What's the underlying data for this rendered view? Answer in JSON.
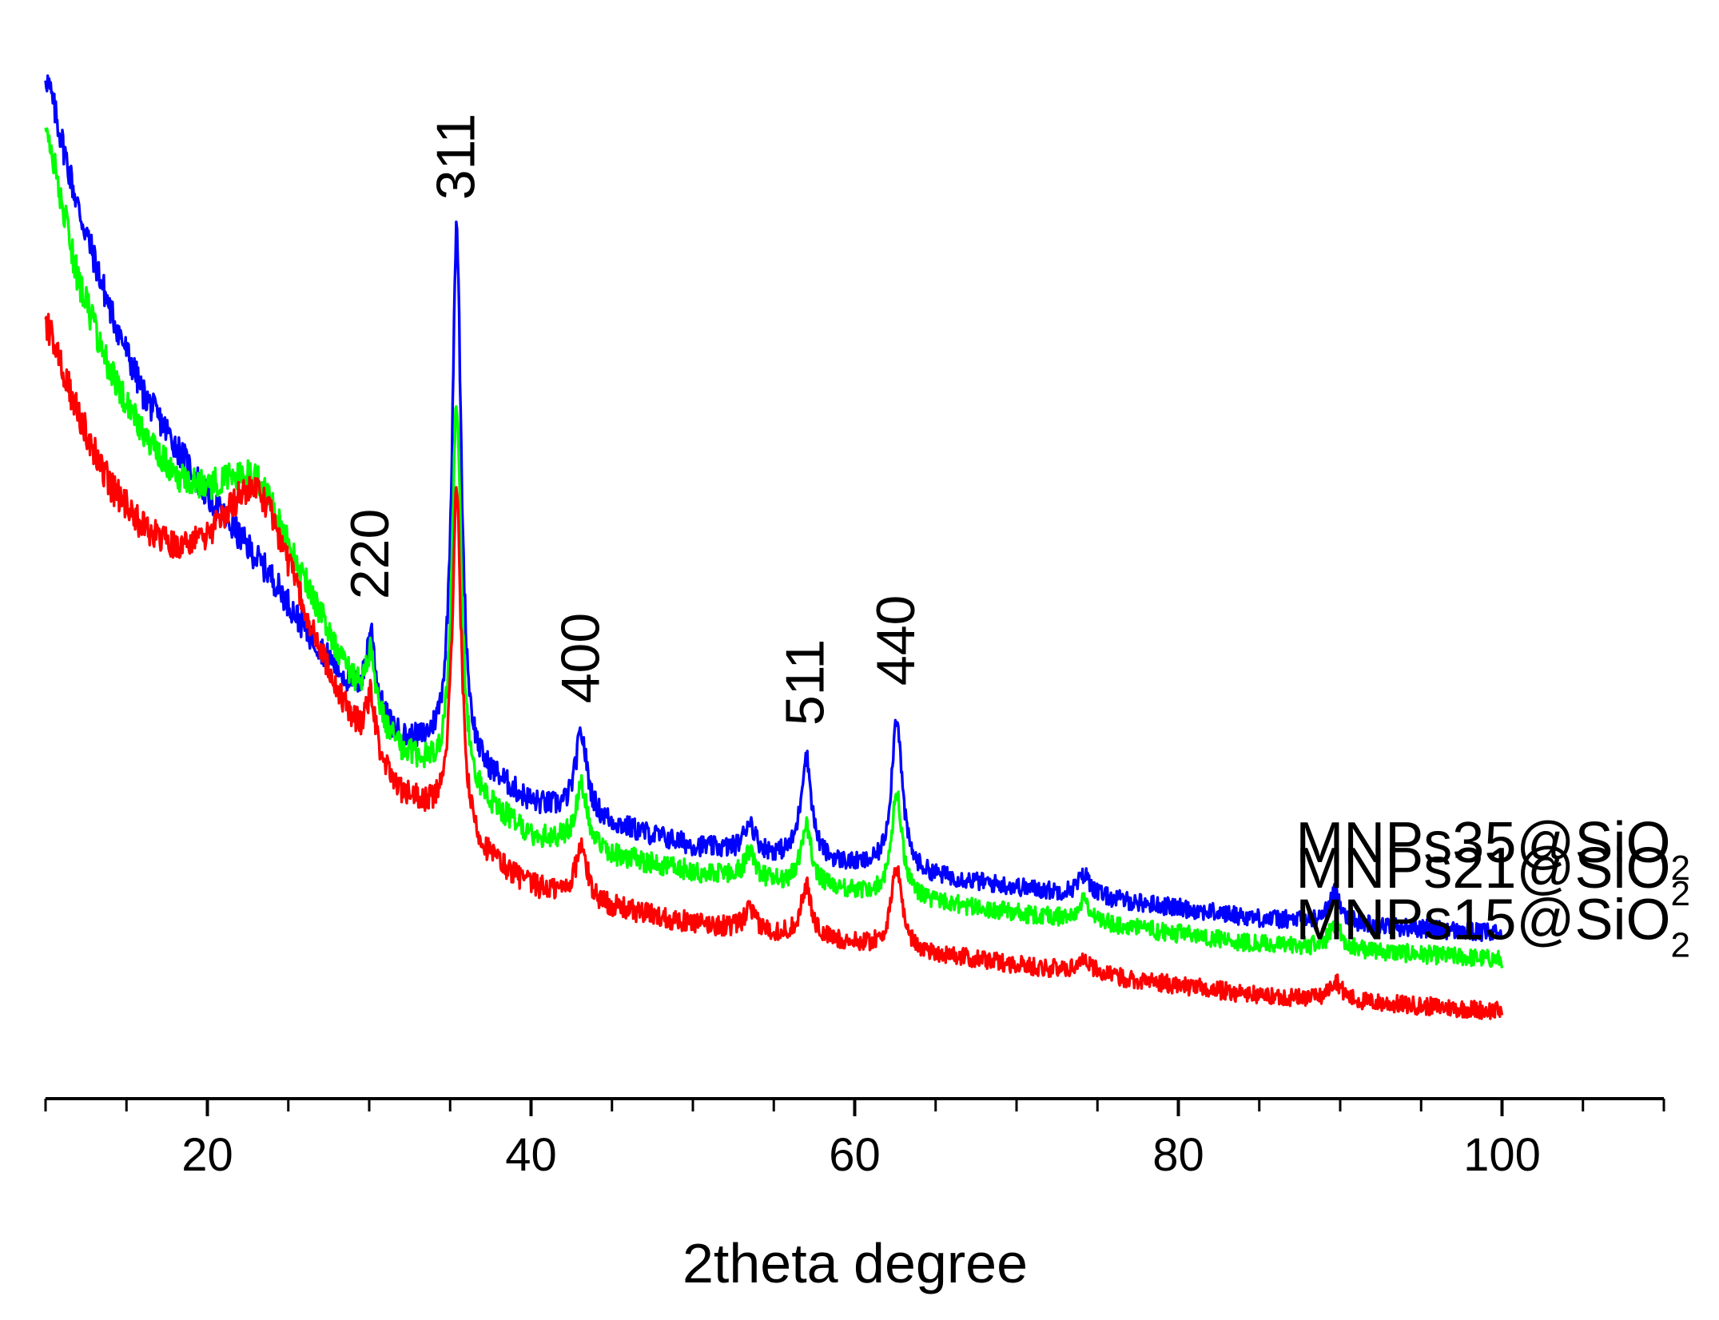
{
  "chart_data": {
    "type": "line",
    "title": "",
    "xlabel": "2theta degree",
    "ylabel": "",
    "xlim": [
      10,
      110
    ],
    "x_ticks": [
      "20",
      "40",
      "60",
      "80",
      "100"
    ],
    "x_tick_values": [
      20,
      40,
      60,
      80,
      100
    ],
    "y_ticks_shown": false,
    "x_data_range": [
      10,
      100
    ],
    "peaks": [
      {
        "label": "220",
        "x": 30.1
      },
      {
        "label": "311",
        "x": 35.4
      },
      {
        "label": "400",
        "x": 43.1
      },
      {
        "label": "511",
        "x": 57.0
      },
      {
        "label": "440",
        "x": 62.6
      }
    ],
    "series": [
      {
        "name": "MNPs35@SiO",
        "subscript": "2",
        "color": "#0000ff",
        "baseline_points": [
          [
            10,
            96
          ],
          [
            12,
            83
          ],
          [
            14,
            73
          ],
          [
            16,
            65
          ],
          [
            18,
            60
          ],
          [
            20,
            55
          ],
          [
            22,
            51
          ],
          [
            24,
            47
          ],
          [
            26,
            42
          ],
          [
            28,
            38
          ],
          [
            29,
            36
          ],
          [
            30,
            34
          ],
          [
            32,
            31
          ],
          [
            34,
            30
          ],
          [
            36,
            28
          ],
          [
            38,
            27
          ],
          [
            40,
            25
          ],
          [
            45,
            23
          ],
          [
            50,
            21
          ],
          [
            55,
            20
          ],
          [
            60,
            19
          ],
          [
            65,
            18
          ],
          [
            70,
            17
          ],
          [
            75,
            16
          ],
          [
            80,
            15
          ],
          [
            85,
            14
          ],
          [
            90,
            13.5
          ],
          [
            95,
            13
          ],
          [
            100,
            12.5
          ]
        ],
        "peak_heights": [
          8,
          52,
          8,
          3,
          10,
          15,
          2,
          3
        ]
      },
      {
        "name": "MNPs21@SiO",
        "subscript": "2",
        "color": "#00ff00",
        "baseline_points": [
          [
            10,
            91
          ],
          [
            12,
            76
          ],
          [
            14,
            67
          ],
          [
            16,
            61
          ],
          [
            18,
            57
          ],
          [
            20,
            56
          ],
          [
            22,
            57
          ],
          [
            23,
            57
          ],
          [
            24,
            54
          ],
          [
            26,
            47
          ],
          [
            28,
            40
          ],
          [
            30,
            34
          ],
          [
            32,
            30
          ],
          [
            34,
            28
          ],
          [
            36,
            26
          ],
          [
            38,
            24
          ],
          [
            40,
            22
          ],
          [
            45,
            20
          ],
          [
            50,
            18.5
          ],
          [
            55,
            17.5
          ],
          [
            60,
            16.5
          ],
          [
            65,
            15.5
          ],
          [
            70,
            14.5
          ],
          [
            75,
            13.5
          ],
          [
            80,
            12.5
          ],
          [
            85,
            11.5
          ],
          [
            90,
            11
          ],
          [
            95,
            10.5
          ],
          [
            100,
            10
          ]
        ],
        "peak_heights": [
          6,
          37,
          6,
          2.5,
          6,
          10,
          2,
          2.5
        ]
      },
      {
        "name": "MNPs15@SiO",
        "subscript": "2",
        "color": "#ff0000",
        "baseline_points": [
          [
            10,
            72
          ],
          [
            12,
            63
          ],
          [
            14,
            56
          ],
          [
            16,
            52
          ],
          [
            18,
            50
          ],
          [
            20,
            51
          ],
          [
            22,
            55
          ],
          [
            23,
            56
          ],
          [
            24,
            53
          ],
          [
            26,
            44
          ],
          [
            28,
            36
          ],
          [
            30,
            30
          ],
          [
            32,
            26
          ],
          [
            34,
            24
          ],
          [
            36,
            21
          ],
          [
            38,
            19
          ],
          [
            40,
            17
          ],
          [
            45,
            15
          ],
          [
            50,
            13.5
          ],
          [
            55,
            12.5
          ],
          [
            60,
            11.5
          ],
          [
            65,
            10.5
          ],
          [
            70,
            9.5
          ],
          [
            75,
            8.5
          ],
          [
            80,
            7.5
          ],
          [
            85,
            6.5
          ],
          [
            90,
            6
          ],
          [
            95,
            5.5
          ],
          [
            100,
            5
          ]
        ],
        "peak_heights": [
          6,
          33,
          5,
          2,
          5,
          8,
          1.5,
          2
        ]
      }
    ],
    "peak_positions": [
      30.1,
      35.4,
      43.1,
      53.5,
      57.0,
      62.6,
      74.2,
      89.7
    ],
    "legend_placement": "right, beside each series"
  }
}
